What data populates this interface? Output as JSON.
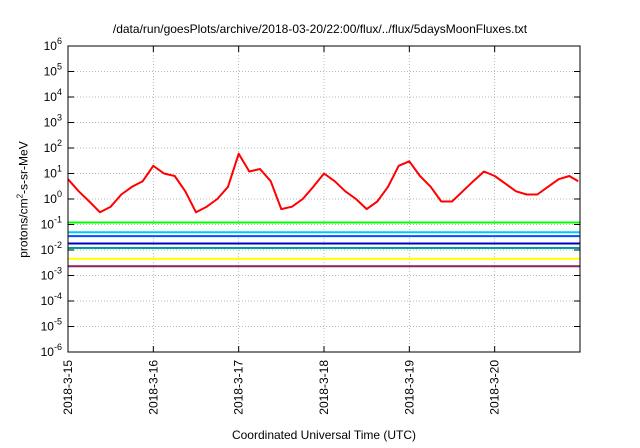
{
  "chart_data": {
    "type": "line",
    "title": "/data/run/goesPlots/archive/2018-03-20/22:00/flux/../flux/5daysMoonFluxes.txt",
    "xlabel": "Coordinated Universal Time (UTC)",
    "ylabel": {
      "prefix": "protons/cm",
      "sup": "2",
      "suffix": "-s-sr-MeV"
    },
    "yscale": "log",
    "ylim": [
      1e-06,
      1000000.0
    ],
    "yticks": [
      {
        "value": -6,
        "base": "10",
        "exp": "-6"
      },
      {
        "value": -5,
        "base": "10",
        "exp": "-5"
      },
      {
        "value": -4,
        "base": "10",
        "exp": "-4"
      },
      {
        "value": -3,
        "base": "10",
        "exp": "-3"
      },
      {
        "value": -2,
        "base": "10",
        "exp": "-2"
      },
      {
        "value": -1,
        "base": "10",
        "exp": "-1"
      },
      {
        "value": 0,
        "base": "10",
        "exp": "0"
      },
      {
        "value": 1,
        "base": "10",
        "exp": "1"
      },
      {
        "value": 2,
        "base": "10",
        "exp": "2"
      },
      {
        "value": 3,
        "base": "10",
        "exp": "3"
      },
      {
        "value": 4,
        "base": "10",
        "exp": "4"
      },
      {
        "value": 5,
        "base": "10",
        "exp": "5"
      },
      {
        "value": 6,
        "base": "10",
        "exp": "6"
      }
    ],
    "xlim": [
      "2018-03-15T00:00",
      "2018-03-21T00:00"
    ],
    "xticks": [
      "2018-3-15",
      "2018-3-16",
      "2018-3-17",
      "2018-3-18",
      "2018-3-19",
      "2018-3-20"
    ],
    "grid": true,
    "series": [
      {
        "color": "#ff0000",
        "x": [
          "2018-03-15T00:00",
          "2018-03-15T03:00",
          "2018-03-15T06:00",
          "2018-03-15T09:00",
          "2018-03-15T12:00",
          "2018-03-15T15:00",
          "2018-03-15T18:00",
          "2018-03-15T21:00",
          "2018-03-16T00:00",
          "2018-03-16T03:00",
          "2018-03-16T06:00",
          "2018-03-16T09:00",
          "2018-03-16T12:00",
          "2018-03-16T15:00",
          "2018-03-16T18:00",
          "2018-03-16T21:00",
          "2018-03-17T00:00",
          "2018-03-17T03:00",
          "2018-03-17T06:00",
          "2018-03-17T09:00",
          "2018-03-17T12:00",
          "2018-03-17T15:00",
          "2018-03-17T18:00",
          "2018-03-17T21:00",
          "2018-03-18T00:00",
          "2018-03-18T03:00",
          "2018-03-18T06:00",
          "2018-03-18T09:00",
          "2018-03-18T12:00",
          "2018-03-18T15:00",
          "2018-03-18T18:00",
          "2018-03-18T21:00",
          "2018-03-19T00:00",
          "2018-03-19T03:00",
          "2018-03-19T06:00",
          "2018-03-19T09:00",
          "2018-03-19T12:00",
          "2018-03-19T15:00",
          "2018-03-19T18:00",
          "2018-03-19T21:00",
          "2018-03-20T00:00",
          "2018-03-20T03:00",
          "2018-03-20T06:00",
          "2018-03-20T09:00",
          "2018-03-20T12:00",
          "2018-03-20T15:00",
          "2018-03-20T18:00",
          "2018-03-20T21:00",
          "2018-03-20T23:30"
        ],
        "values": [
          6,
          2,
          0.8,
          0.3,
          0.5,
          1.5,
          3,
          5,
          20,
          10,
          8,
          2,
          0.3,
          0.5,
          1,
          3,
          60,
          12,
          15,
          5,
          0.4,
          0.5,
          1,
          3,
          10,
          5,
          2,
          1,
          0.4,
          0.8,
          3,
          20,
          30,
          8,
          3,
          0.8,
          0.8,
          2,
          5,
          12,
          8,
          4,
          2,
          1.5,
          1.5,
          3,
          6,
          8,
          5
        ]
      },
      {
        "color": "#00ff00",
        "x": [
          "2018-03-15T00:00",
          "2018-03-21T00:00"
        ],
        "values": [
          0.12,
          0.12
        ]
      },
      {
        "color": "#00c8ff",
        "x": [
          "2018-03-15T00:00",
          "2018-03-21T00:00"
        ],
        "values": [
          0.05,
          0.05
        ]
      },
      {
        "color": "#0050ff",
        "x": [
          "2018-03-15T00:00",
          "2018-03-21T00:00"
        ],
        "values": [
          0.035,
          0.035
        ]
      },
      {
        "color": "#0000c8",
        "x": [
          "2018-03-15T00:00",
          "2018-03-21T00:00"
        ],
        "values": [
          0.018,
          0.018
        ]
      },
      {
        "color": "#00a0a0",
        "x": [
          "2018-03-15T00:00",
          "2018-03-21T00:00"
        ],
        "values": [
          0.012,
          0.012
        ]
      },
      {
        "color": "#ffff00",
        "x": [
          "2018-03-15T00:00",
          "2018-03-21T00:00"
        ],
        "values": [
          0.0045,
          0.0045
        ]
      },
      {
        "color": "#8b2060",
        "x": [
          "2018-03-15T00:00",
          "2018-03-21T00:00"
        ],
        "values": [
          0.0023,
          0.0023
        ]
      }
    ]
  }
}
